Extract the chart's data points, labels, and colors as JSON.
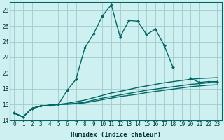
{
  "xlabel": "Humidex (Indice chaleur)",
  "background_color": "#cff0f0",
  "grid_color": "#a0cccc",
  "line_color": "#006666",
  "x": [
    0,
    1,
    2,
    3,
    4,
    5,
    6,
    7,
    8,
    9,
    10,
    11,
    12,
    13,
    14,
    15,
    16,
    17,
    18,
    19,
    20,
    21,
    22,
    23
  ],
  "y_main": [
    14.9,
    14.4,
    15.5,
    15.8,
    15.9,
    16.0,
    17.8,
    19.2,
    23.2,
    25.0,
    27.3,
    28.7,
    24.6,
    26.7,
    26.6,
    24.9,
    25.6,
    23.5,
    20.7,
    null,
    19.3,
    18.8,
    18.9,
    18.9
  ],
  "y_line2": [
    14.9,
    14.4,
    15.5,
    15.8,
    15.9,
    16.0,
    16.15,
    16.35,
    16.55,
    16.85,
    17.15,
    17.45,
    17.65,
    17.9,
    18.15,
    18.35,
    18.55,
    18.75,
    18.9,
    19.05,
    19.2,
    19.3,
    19.35,
    19.4
  ],
  "y_line3": [
    14.9,
    14.4,
    15.5,
    15.8,
    15.9,
    16.0,
    16.05,
    16.15,
    16.3,
    16.55,
    16.8,
    17.0,
    17.2,
    17.4,
    17.6,
    17.8,
    17.95,
    18.1,
    18.25,
    18.4,
    18.55,
    18.65,
    18.75,
    18.8
  ],
  "y_line4": [
    14.9,
    14.4,
    15.5,
    15.8,
    15.9,
    16.0,
    16.02,
    16.1,
    16.2,
    16.4,
    16.6,
    16.8,
    17.0,
    17.15,
    17.3,
    17.5,
    17.65,
    17.8,
    17.95,
    18.1,
    18.25,
    18.35,
    18.45,
    18.5
  ],
  "ylim": [
    14,
    29
  ],
  "xlim": [
    -0.5,
    23.5
  ],
  "yticks": [
    14,
    16,
    18,
    20,
    22,
    24,
    26,
    28
  ],
  "xticks": [
    0,
    1,
    2,
    3,
    4,
    5,
    6,
    7,
    8,
    9,
    10,
    11,
    12,
    13,
    14,
    15,
    16,
    17,
    18,
    19,
    20,
    21,
    22,
    23
  ],
  "marker_size": 2.5,
  "line_width": 1.0
}
